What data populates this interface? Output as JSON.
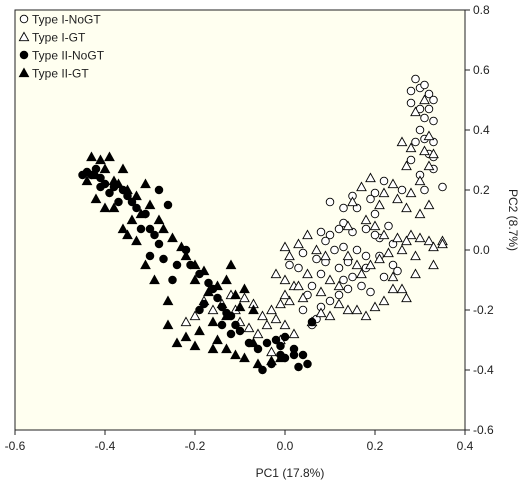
{
  "chart_data": {
    "type": "scatter",
    "title": "",
    "xlabel": "PC1 (17.8%)",
    "ylabel": "PC2 (8.7%)",
    "xlim": [
      -0.6,
      0.4
    ],
    "ylim": [
      -0.6,
      0.8
    ],
    "x_ticks": [
      "-0.6",
      "-0.4",
      "-0.2",
      "0.0",
      "0.2",
      "0.4"
    ],
    "y_ticks": [
      "0.8",
      "0.6",
      "0.4",
      "0.2",
      "0.0",
      "-0.2",
      "-0.4",
      "-0.6"
    ],
    "grid": false,
    "legend_position": "top-left",
    "plot_background": "#fffff0",
    "series": [
      {
        "name": "Type I-NoGT",
        "marker": "circle-open",
        "points": [
          [
            0.28,
            0.53
          ],
          [
            0.29,
            0.57
          ],
          [
            0.3,
            0.54
          ],
          [
            0.31,
            0.55
          ],
          [
            0.32,
            0.52
          ],
          [
            0.33,
            0.5
          ],
          [
            0.28,
            0.49
          ],
          [
            0.3,
            0.47
          ],
          [
            0.32,
            0.47
          ],
          [
            0.31,
            0.44
          ],
          [
            0.33,
            0.43
          ],
          [
            0.3,
            0.4
          ],
          [
            0.31,
            0.37
          ],
          [
            0.29,
            0.36
          ],
          [
            0.33,
            0.36
          ],
          [
            0.32,
            0.32
          ],
          [
            0.28,
            0.3
          ],
          [
            0.33,
            0.31
          ],
          [
            0.33,
            0.27
          ],
          [
            0.3,
            0.25
          ],
          [
            0.26,
            0.2
          ],
          [
            0.31,
            0.2
          ],
          [
            0.35,
            0.21
          ],
          [
            0.22,
            0.23
          ],
          [
            0.2,
            0.19
          ],
          [
            0.19,
            0.17
          ],
          [
            0.15,
            0.18
          ],
          [
            0.13,
            0.14
          ],
          [
            0.1,
            0.16
          ],
          [
            0.16,
            0.14
          ],
          [
            0.2,
            0.12
          ],
          [
            0.13,
            0.09
          ],
          [
            0.18,
            0.07
          ],
          [
            0.21,
            0.04
          ],
          [
            0.24,
            0.02
          ],
          [
            0.15,
            0.06
          ],
          [
            0.12,
            0.07
          ],
          [
            0.1,
            0.05
          ],
          [
            0.09,
            0.03
          ],
          [
            0.08,
            0.06
          ],
          [
            0.11,
            0.0
          ],
          [
            0.13,
            0.01
          ],
          [
            0.16,
            0.0
          ],
          [
            0.18,
            -0.02
          ],
          [
            0.21,
            -0.02
          ],
          [
            0.24,
            -0.05
          ],
          [
            0.18,
            -0.06
          ],
          [
            0.14,
            -0.04
          ],
          [
            0.12,
            -0.06
          ],
          [
            0.09,
            -0.04
          ],
          [
            0.08,
            -0.08
          ],
          [
            0.07,
            -0.03
          ],
          [
            0.04,
            -0.01
          ],
          [
            0.03,
            -0.06
          ],
          [
            0.01,
            -0.05
          ],
          [
            0.15,
            -0.09
          ],
          [
            0.17,
            -0.12
          ],
          [
            0.19,
            -0.14
          ],
          [
            0.14,
            -0.13
          ],
          [
            0.12,
            -0.15
          ],
          [
            0.1,
            -0.17
          ],
          [
            0.06,
            -0.12
          ],
          [
            0.05,
            -0.15
          ],
          [
            0.08,
            -0.19
          ],
          [
            0.07,
            -0.23
          ],
          [
            0.04,
            -0.2
          ],
          [
            0.06,
            -0.25
          ],
          [
            0.13,
            -0.1
          ],
          [
            0.22,
            -0.09
          ],
          [
            0.2,
            0.05
          ],
          [
            0.23,
            0.08
          ],
          [
            0.25,
            -0.07
          ]
        ]
      },
      {
        "name": "Type I-GT",
        "marker": "triangle-open",
        "points": [
          [
            0.29,
            0.46
          ],
          [
            0.31,
            0.5
          ],
          [
            0.32,
            0.38
          ],
          [
            0.33,
            0.32
          ],
          [
            0.31,
            0.33
          ],
          [
            0.28,
            0.34
          ],
          [
            0.26,
            0.36
          ],
          [
            0.27,
            0.28
          ],
          [
            0.32,
            0.28
          ],
          [
            0.3,
            0.23
          ],
          [
            0.28,
            0.19
          ],
          [
            0.32,
            0.15
          ],
          [
            0.3,
            0.12
          ],
          [
            0.27,
            0.14
          ],
          [
            0.25,
            0.17
          ],
          [
            0.24,
            0.22
          ],
          [
            0.22,
            0.19
          ],
          [
            0.21,
            0.15
          ],
          [
            0.19,
            0.24
          ],
          [
            0.17,
            0.21
          ],
          [
            0.15,
            0.16
          ],
          [
            0.14,
            0.08
          ],
          [
            0.18,
            0.1
          ],
          [
            0.2,
            0.08
          ],
          [
            0.22,
            0.05
          ],
          [
            0.25,
            0.04
          ],
          [
            0.28,
            0.05
          ],
          [
            0.3,
            0.04
          ],
          [
            0.32,
            0.03
          ],
          [
            0.33,
            0.01
          ],
          [
            0.27,
            0.03
          ],
          [
            0.23,
            -0.01
          ],
          [
            0.21,
            -0.03
          ],
          [
            0.19,
            -0.05
          ],
          [
            0.17,
            -0.08
          ],
          [
            0.24,
            -0.09
          ],
          [
            0.26,
            -0.13
          ],
          [
            0.22,
            -0.17
          ],
          [
            0.2,
            -0.19
          ],
          [
            0.18,
            -0.22
          ],
          [
            0.16,
            -0.2
          ],
          [
            0.14,
            -0.2
          ],
          [
            0.12,
            -0.18
          ],
          [
            0.1,
            -0.22
          ],
          [
            0.08,
            -0.21
          ],
          [
            0.06,
            -0.24
          ],
          [
            0.04,
            -0.16
          ],
          [
            0.02,
            -0.12
          ],
          [
            0.0,
            -0.1
          ],
          [
            -0.02,
            -0.08
          ],
          [
            0.01,
            -0.02
          ],
          [
            0.03,
            0.02
          ],
          [
            0.05,
            0.05
          ],
          [
            0.07,
            0.0
          ],
          [
            0.09,
            -0.02
          ],
          [
            0.05,
            -0.08
          ],
          [
            0.03,
            -0.12
          ],
          [
            0.01,
            -0.17
          ],
          [
            -0.01,
            -0.18
          ],
          [
            -0.03,
            -0.2
          ],
          [
            -0.05,
            -0.22
          ],
          [
            -0.07,
            -0.18
          ],
          [
            -0.09,
            -0.16
          ],
          [
            -0.12,
            -0.15
          ],
          [
            -0.14,
            -0.18
          ],
          [
            -0.16,
            -0.2
          ],
          [
            -0.18,
            -0.17
          ],
          [
            -0.2,
            -0.22
          ],
          [
            -0.22,
            -0.24
          ],
          [
            -0.1,
            -0.24
          ],
          [
            -0.08,
            -0.26
          ],
          [
            -0.06,
            -0.28
          ],
          [
            -0.04,
            -0.25
          ],
          [
            -0.02,
            -0.23
          ],
          [
            0.0,
            -0.25
          ],
          [
            0.02,
            -0.28
          ],
          [
            -0.01,
            -0.3
          ],
          [
            -0.03,
            -0.34
          ],
          [
            0.0,
            -0.15
          ],
          [
            0.1,
            -0.1
          ],
          [
            0.12,
            -0.12
          ],
          [
            0.14,
            -0.02
          ],
          [
            0.16,
            -0.05
          ],
          [
            0.26,
            0.0
          ],
          [
            0.29,
            -0.02
          ],
          [
            0.33,
            -0.05
          ],
          [
            0.35,
            0.03
          ],
          [
            0.35,
            0.02
          ],
          [
            0.29,
            -0.08
          ],
          [
            0.27,
            -0.16
          ],
          [
            0.24,
            -0.13
          ],
          [
            0.08,
            -0.14
          ],
          [
            0.0,
            0.01
          ],
          [
            -0.11,
            -0.2
          ]
        ]
      },
      {
        "name": "Type II-NoGT",
        "marker": "circle-filled",
        "points": [
          [
            -0.42,
            0.27
          ],
          [
            -0.43,
            0.25
          ],
          [
            -0.41,
            0.24
          ],
          [
            -0.4,
            0.22
          ],
          [
            -0.38,
            0.21
          ],
          [
            -0.36,
            0.2
          ],
          [
            -0.35,
            0.18
          ],
          [
            -0.34,
            0.16
          ],
          [
            -0.37,
            0.16
          ],
          [
            -0.39,
            0.19
          ],
          [
            -0.41,
            0.21
          ],
          [
            -0.44,
            0.26
          ],
          [
            -0.45,
            0.25
          ],
          [
            -0.33,
            0.14
          ],
          [
            -0.31,
            0.12
          ],
          [
            -0.3,
            0.07
          ],
          [
            -0.29,
            0.05
          ],
          [
            -0.28,
            0.02
          ],
          [
            -0.27,
            -0.03
          ],
          [
            -0.24,
            -0.05
          ],
          [
            -0.22,
            0.0
          ],
          [
            -0.21,
            -0.05
          ],
          [
            -0.19,
            -0.08
          ],
          [
            -0.17,
            -0.11
          ],
          [
            -0.16,
            -0.13
          ],
          [
            -0.15,
            -0.16
          ],
          [
            -0.14,
            -0.19
          ],
          [
            -0.13,
            -0.21
          ],
          [
            -0.12,
            -0.22
          ],
          [
            -0.11,
            -0.25
          ],
          [
            -0.1,
            -0.27
          ],
          [
            -0.08,
            -0.31
          ],
          [
            -0.06,
            -0.33
          ],
          [
            -0.04,
            -0.31
          ],
          [
            -0.02,
            -0.3
          ],
          [
            0.0,
            -0.29
          ],
          [
            0.02,
            -0.33
          ],
          [
            0.04,
            -0.35
          ],
          [
            0.03,
            -0.39
          ],
          [
            0.0,
            -0.36
          ],
          [
            -0.03,
            -0.38
          ],
          [
            -0.05,
            -0.4
          ],
          [
            -0.01,
            -0.35
          ],
          [
            -0.12,
            -0.28
          ],
          [
            -0.14,
            -0.25
          ],
          [
            -0.18,
            -0.18
          ],
          [
            -0.19,
            -0.2
          ],
          [
            -0.25,
            -0.1
          ],
          [
            -0.3,
            -0.02
          ],
          [
            -0.32,
            0.07
          ],
          [
            -0.28,
            0.2
          ],
          [
            -0.26,
            0.15
          ],
          [
            0.02,
            -0.35
          ],
          [
            0.05,
            -0.38
          ],
          [
            0.06,
            -0.24
          ],
          [
            -0.01,
            -0.32
          ]
        ]
      },
      {
        "name": "Type II-GT",
        "marker": "triangle-filled",
        "points": [
          [
            -0.43,
            0.31
          ],
          [
            -0.41,
            0.3
          ],
          [
            -0.39,
            0.31
          ],
          [
            -0.4,
            0.27
          ],
          [
            -0.42,
            0.25
          ],
          [
            -0.44,
            0.23
          ],
          [
            -0.38,
            0.23
          ],
          [
            -0.36,
            0.27
          ],
          [
            -0.37,
            0.22
          ],
          [
            -0.35,
            0.2
          ],
          [
            -0.33,
            0.18
          ],
          [
            -0.31,
            0.22
          ],
          [
            -0.3,
            0.15
          ],
          [
            -0.32,
            0.12
          ],
          [
            -0.34,
            0.1
          ],
          [
            -0.36,
            0.07
          ],
          [
            -0.38,
            0.14
          ],
          [
            -0.4,
            0.14
          ],
          [
            -0.42,
            0.17
          ],
          [
            -0.28,
            0.1
          ],
          [
            -0.27,
            0.07
          ],
          [
            -0.25,
            0.04
          ],
          [
            -0.23,
            0.01
          ],
          [
            -0.22,
            -0.02
          ],
          [
            -0.2,
            -0.05
          ],
          [
            -0.18,
            -0.07
          ],
          [
            -0.2,
            -0.1
          ],
          [
            -0.17,
            -0.14
          ],
          [
            -0.15,
            -0.12
          ],
          [
            -0.13,
            -0.1
          ],
          [
            -0.11,
            -0.15
          ],
          [
            -0.09,
            -0.13
          ],
          [
            -0.07,
            -0.2
          ],
          [
            -0.1,
            -0.19
          ],
          [
            -0.13,
            -0.22
          ],
          [
            -0.16,
            -0.24
          ],
          [
            -0.19,
            -0.27
          ],
          [
            -0.22,
            -0.29
          ],
          [
            -0.24,
            -0.31
          ],
          [
            -0.2,
            -0.32
          ],
          [
            -0.16,
            -0.33
          ],
          [
            -0.13,
            -0.33
          ],
          [
            -0.11,
            -0.35
          ],
          [
            -0.09,
            -0.36
          ],
          [
            -0.06,
            -0.38
          ],
          [
            -0.03,
            -0.37
          ],
          [
            -0.01,
            -0.36
          ],
          [
            -0.07,
            -0.31
          ],
          [
            -0.26,
            -0.17
          ],
          [
            -0.29,
            -0.1
          ],
          [
            -0.31,
            -0.05
          ],
          [
            -0.33,
            0.03
          ],
          [
            -0.35,
            0.05
          ],
          [
            -0.26,
            -0.25
          ],
          [
            -0.12,
            -0.05
          ],
          [
            -0.15,
            -0.3
          ]
        ]
      }
    ]
  }
}
